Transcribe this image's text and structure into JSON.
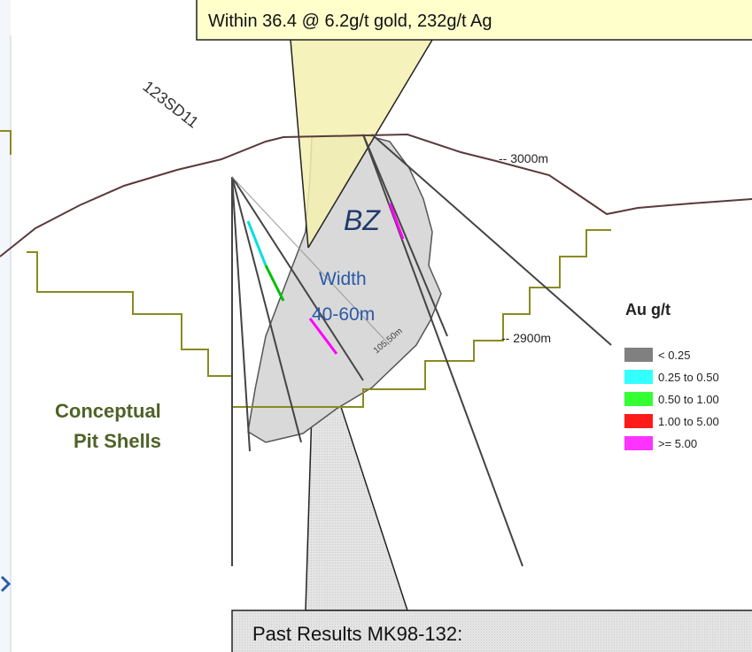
{
  "callouts": {
    "top": "Within 36.4 @ 6.2g/t gold, 232g/t Ag",
    "bottom": "Past Results MK98-132:"
  },
  "section": {
    "drill_hole": "123SD11",
    "zone": "BZ",
    "width_label": "Width",
    "width_value": "40-60m",
    "intercept": "105.50m",
    "elevations": [
      "-- 3000m",
      "-- 2900m"
    ],
    "pit_label": [
      "Conceptual",
      "Pit Shells"
    ]
  },
  "legend": {
    "title": "Au g/t",
    "items": [
      "< 0.25",
      "0.25 to 0.50",
      "0.50 to 1.00",
      "1.00 to 5.00",
      ">= 5.00"
    ]
  }
}
